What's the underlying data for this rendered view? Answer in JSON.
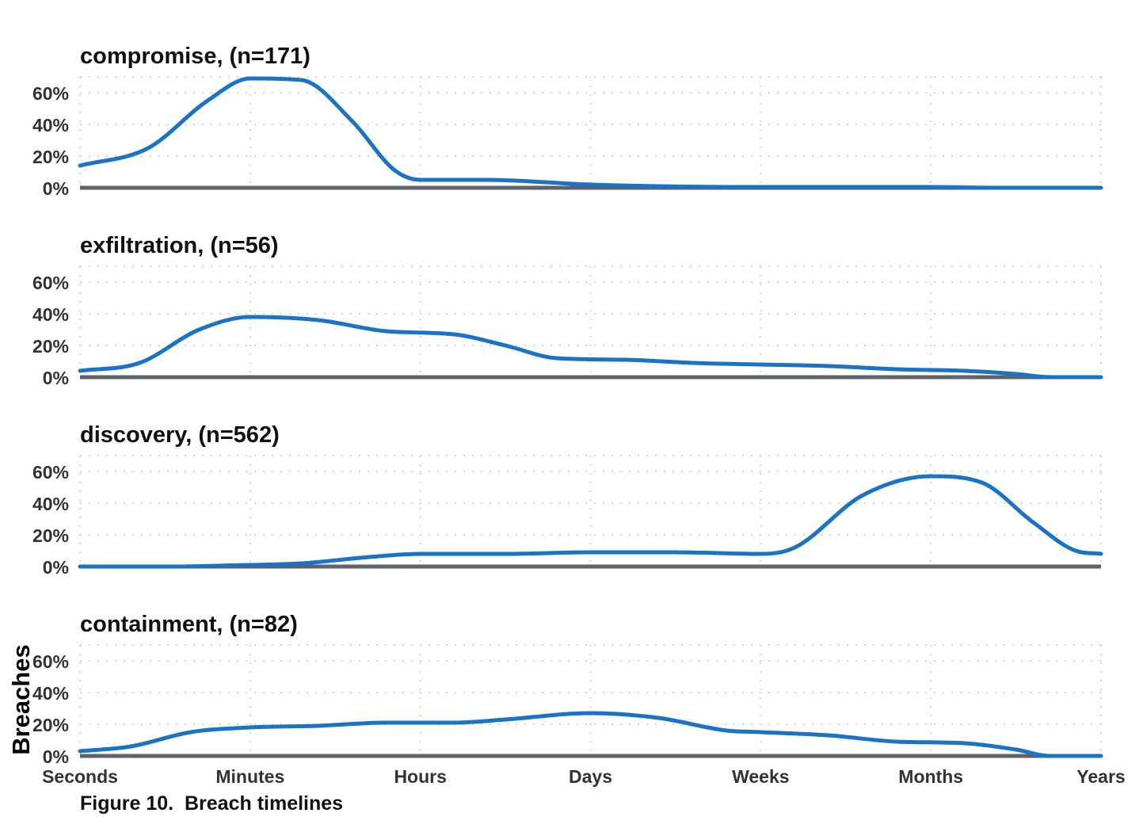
{
  "caption": "Figure 10.  Breach timelines",
  "chart_data": {
    "type": "area",
    "ylabel": "Breaches",
    "x_categories": [
      "Seconds",
      "Minutes",
      "Hours",
      "Days",
      "Weeks",
      "Months",
      "Years"
    ],
    "y_ticks": [
      "0%",
      "20%",
      "40%",
      "60%"
    ],
    "y_tick_values": [
      0,
      20,
      40,
      60
    ],
    "ylim": [
      0,
      70
    ],
    "grid": true,
    "line_color": "#1a73c4",
    "baseline_color": "#5f6368",
    "panels": [
      {
        "title": "compromise, (n=171)",
        "points": [
          [
            0,
            14
          ],
          [
            0.4,
            25
          ],
          [
            0.75,
            55
          ],
          [
            1,
            69
          ],
          [
            1.3,
            68
          ],
          [
            1.6,
            42
          ],
          [
            1.85,
            11
          ],
          [
            2,
            5
          ],
          [
            2.4,
            5
          ],
          [
            3,
            2
          ],
          [
            4,
            0.5
          ],
          [
            5,
            0.5
          ],
          [
            5.4,
            0
          ],
          [
            6,
            0
          ]
        ]
      },
      {
        "title": "exfiltration, (n=56)",
        "points": [
          [
            0,
            4
          ],
          [
            0.35,
            9
          ],
          [
            0.7,
            30
          ],
          [
            1,
            38
          ],
          [
            1.4,
            36
          ],
          [
            1.8,
            29
          ],
          [
            2.2,
            27
          ],
          [
            2.5,
            20
          ],
          [
            2.8,
            12
          ],
          [
            3.2,
            11
          ],
          [
            3.6,
            9
          ],
          [
            4,
            8
          ],
          [
            4.4,
            7
          ],
          [
            4.8,
            5
          ],
          [
            5.2,
            4
          ],
          [
            5.5,
            2
          ],
          [
            5.7,
            0
          ],
          [
            6,
            0
          ]
        ]
      },
      {
        "title": "discovery, (n=562)",
        "points": [
          [
            0,
            0
          ],
          [
            0.5,
            0
          ],
          [
            1,
            1
          ],
          [
            1.3,
            2
          ],
          [
            1.7,
            6
          ],
          [
            2,
            8
          ],
          [
            2.5,
            8
          ],
          [
            3,
            9
          ],
          [
            3.5,
            9
          ],
          [
            4,
            8
          ],
          [
            4.2,
            12
          ],
          [
            4.6,
            45
          ],
          [
            5,
            57
          ],
          [
            5.3,
            53
          ],
          [
            5.6,
            28
          ],
          [
            5.85,
            10
          ],
          [
            6,
            8
          ]
        ]
      },
      {
        "title": "containment, (n=82)",
        "points": [
          [
            0,
            3
          ],
          [
            0.3,
            6
          ],
          [
            0.65,
            15
          ],
          [
            1,
            18
          ],
          [
            1.4,
            19
          ],
          [
            1.8,
            21
          ],
          [
            2.2,
            21
          ],
          [
            2.5,
            23
          ],
          [
            3,
            27
          ],
          [
            3.4,
            24
          ],
          [
            3.8,
            16
          ],
          [
            4,
            15
          ],
          [
            4.4,
            13
          ],
          [
            4.8,
            9
          ],
          [
            5.2,
            8
          ],
          [
            5.5,
            4
          ],
          [
            5.7,
            0
          ],
          [
            6,
            0
          ]
        ]
      }
    ]
  }
}
